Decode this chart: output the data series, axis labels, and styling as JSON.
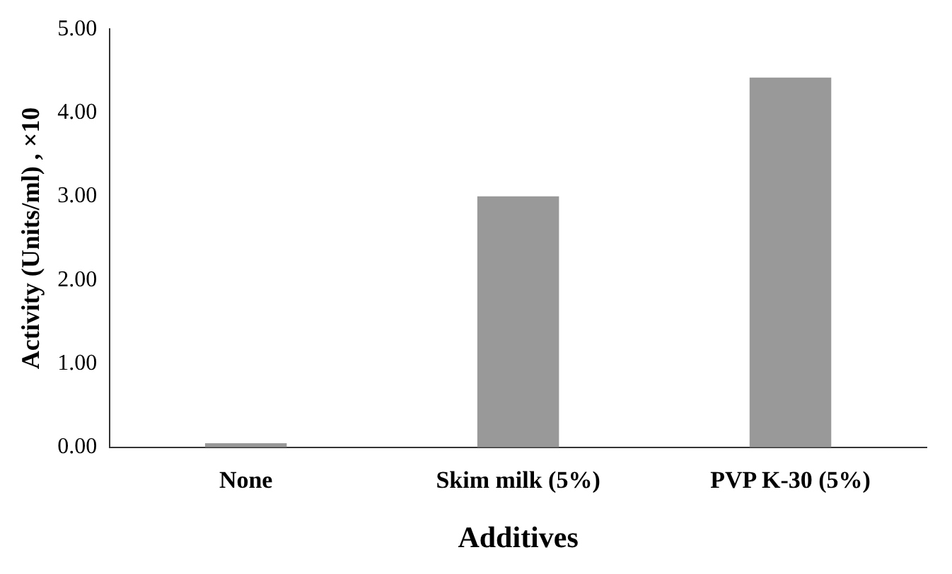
{
  "chart_data": {
    "type": "bar",
    "xlabel": "Additives",
    "ylabel": "Activity (Units/ml) , ×10",
    "categories": [
      "None",
      "Skim milk (5%)",
      "PVP K-30 (5%)"
    ],
    "values": [
      0.05,
      3.0,
      4.42
    ],
    "color": "#999999",
    "ylim": [
      0,
      5
    ],
    "yticks": [
      {
        "value": 0,
        "label": "0.00"
      },
      {
        "value": 1,
        "label": "1.00"
      },
      {
        "value": 2,
        "label": "2.00"
      },
      {
        "value": 3,
        "label": "3.00"
      },
      {
        "value": 4,
        "label": "4.00"
      },
      {
        "value": 5,
        "label": "5.00"
      }
    ],
    "grid": false,
    "legend": false
  }
}
